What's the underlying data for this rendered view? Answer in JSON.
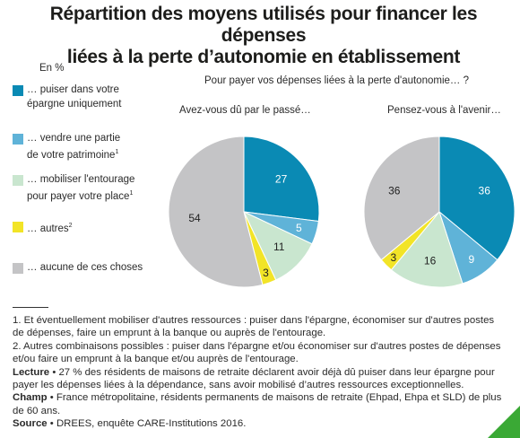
{
  "title_line1": "Répartition des moyens utilisés pour financer les dépenses",
  "title_line2": "liées à la perte d’autonomie en établissement",
  "unit": "En %",
  "question": "Pour payer vos dépenses liées à la perte d'autonomie… ?",
  "colors": {
    "epargne": "#0a8ab4",
    "patrimoine": "#5fb3d8",
    "entourage": "#c9e6cf",
    "autres": "#f2e427",
    "aucune": "#c4c4c6",
    "accent": "#3aa935"
  },
  "legend": [
    {
      "key": "epargne",
      "line1": "… puiser dans votre",
      "line2": "épargne uniquement",
      "sup": ""
    },
    {
      "key": "patrimoine",
      "line1": "… vendre une partie",
      "line2": "de votre patrimoine",
      "sup": "1"
    },
    {
      "key": "entourage",
      "line1": "… mobiliser l'entourage",
      "line2": "pour payer votre place",
      "sup": "1"
    },
    {
      "key": "autres",
      "line1": "… autres",
      "line2": "",
      "sup": "2"
    },
    {
      "key": "aucune",
      "line1": "… aucune de ces choses",
      "line2": "",
      "sup": ""
    }
  ],
  "chart_data": [
    {
      "type": "pie",
      "title": "Avez-vous dû par le passé…",
      "categories": [
        "… puiser dans votre épargne uniquement",
        "… vendre une partie de votre patrimoine",
        "… mobiliser l'entourage pour payer votre place",
        "… autres",
        "… aucune de ces choses"
      ],
      "values": [
        27,
        5,
        11,
        3,
        54
      ]
    },
    {
      "type": "pie",
      "title": "Pensez-vous à l'avenir…",
      "categories": [
        "… puiser dans votre épargne uniquement",
        "… vendre une partie de votre patrimoine",
        "… mobiliser l'entourage pour payer votre place",
        "… autres",
        "… aucune de ces choses"
      ],
      "values": [
        36,
        9,
        16,
        3,
        36
      ]
    }
  ],
  "notes": {
    "n1": "1. Et éventuellement mobiliser d'autres ressources : puiser dans l'épargne, économiser sur d'autres postes de dépenses, faire un emprunt à la banque ou auprès de l'entourage.",
    "n2": "2. Autres combinaisons possibles : puiser dans l'épargne et/ou économiser sur d'autres postes de dépenses et/ou faire un emprunt à la banque et/ou auprès de l'entourage.",
    "lecture_label": "Lecture",
    "lecture": " • 27 % des résidents de maisons de retraite déclarent avoir déjà dû puiser dans leur épargne pour payer les dépenses liées à la dépendance, sans avoir mobilisé d’autres ressources exceptionnelles.",
    "champ_label": "Champ",
    "champ": " • France métropolitaine, résidents permanents de maisons de retraite (Ehpad, Ehpa et SLD) de plus de 60 ans.",
    "source_label": "Source",
    "source": " • DREES, enquête CARE-Institutions 2016."
  }
}
